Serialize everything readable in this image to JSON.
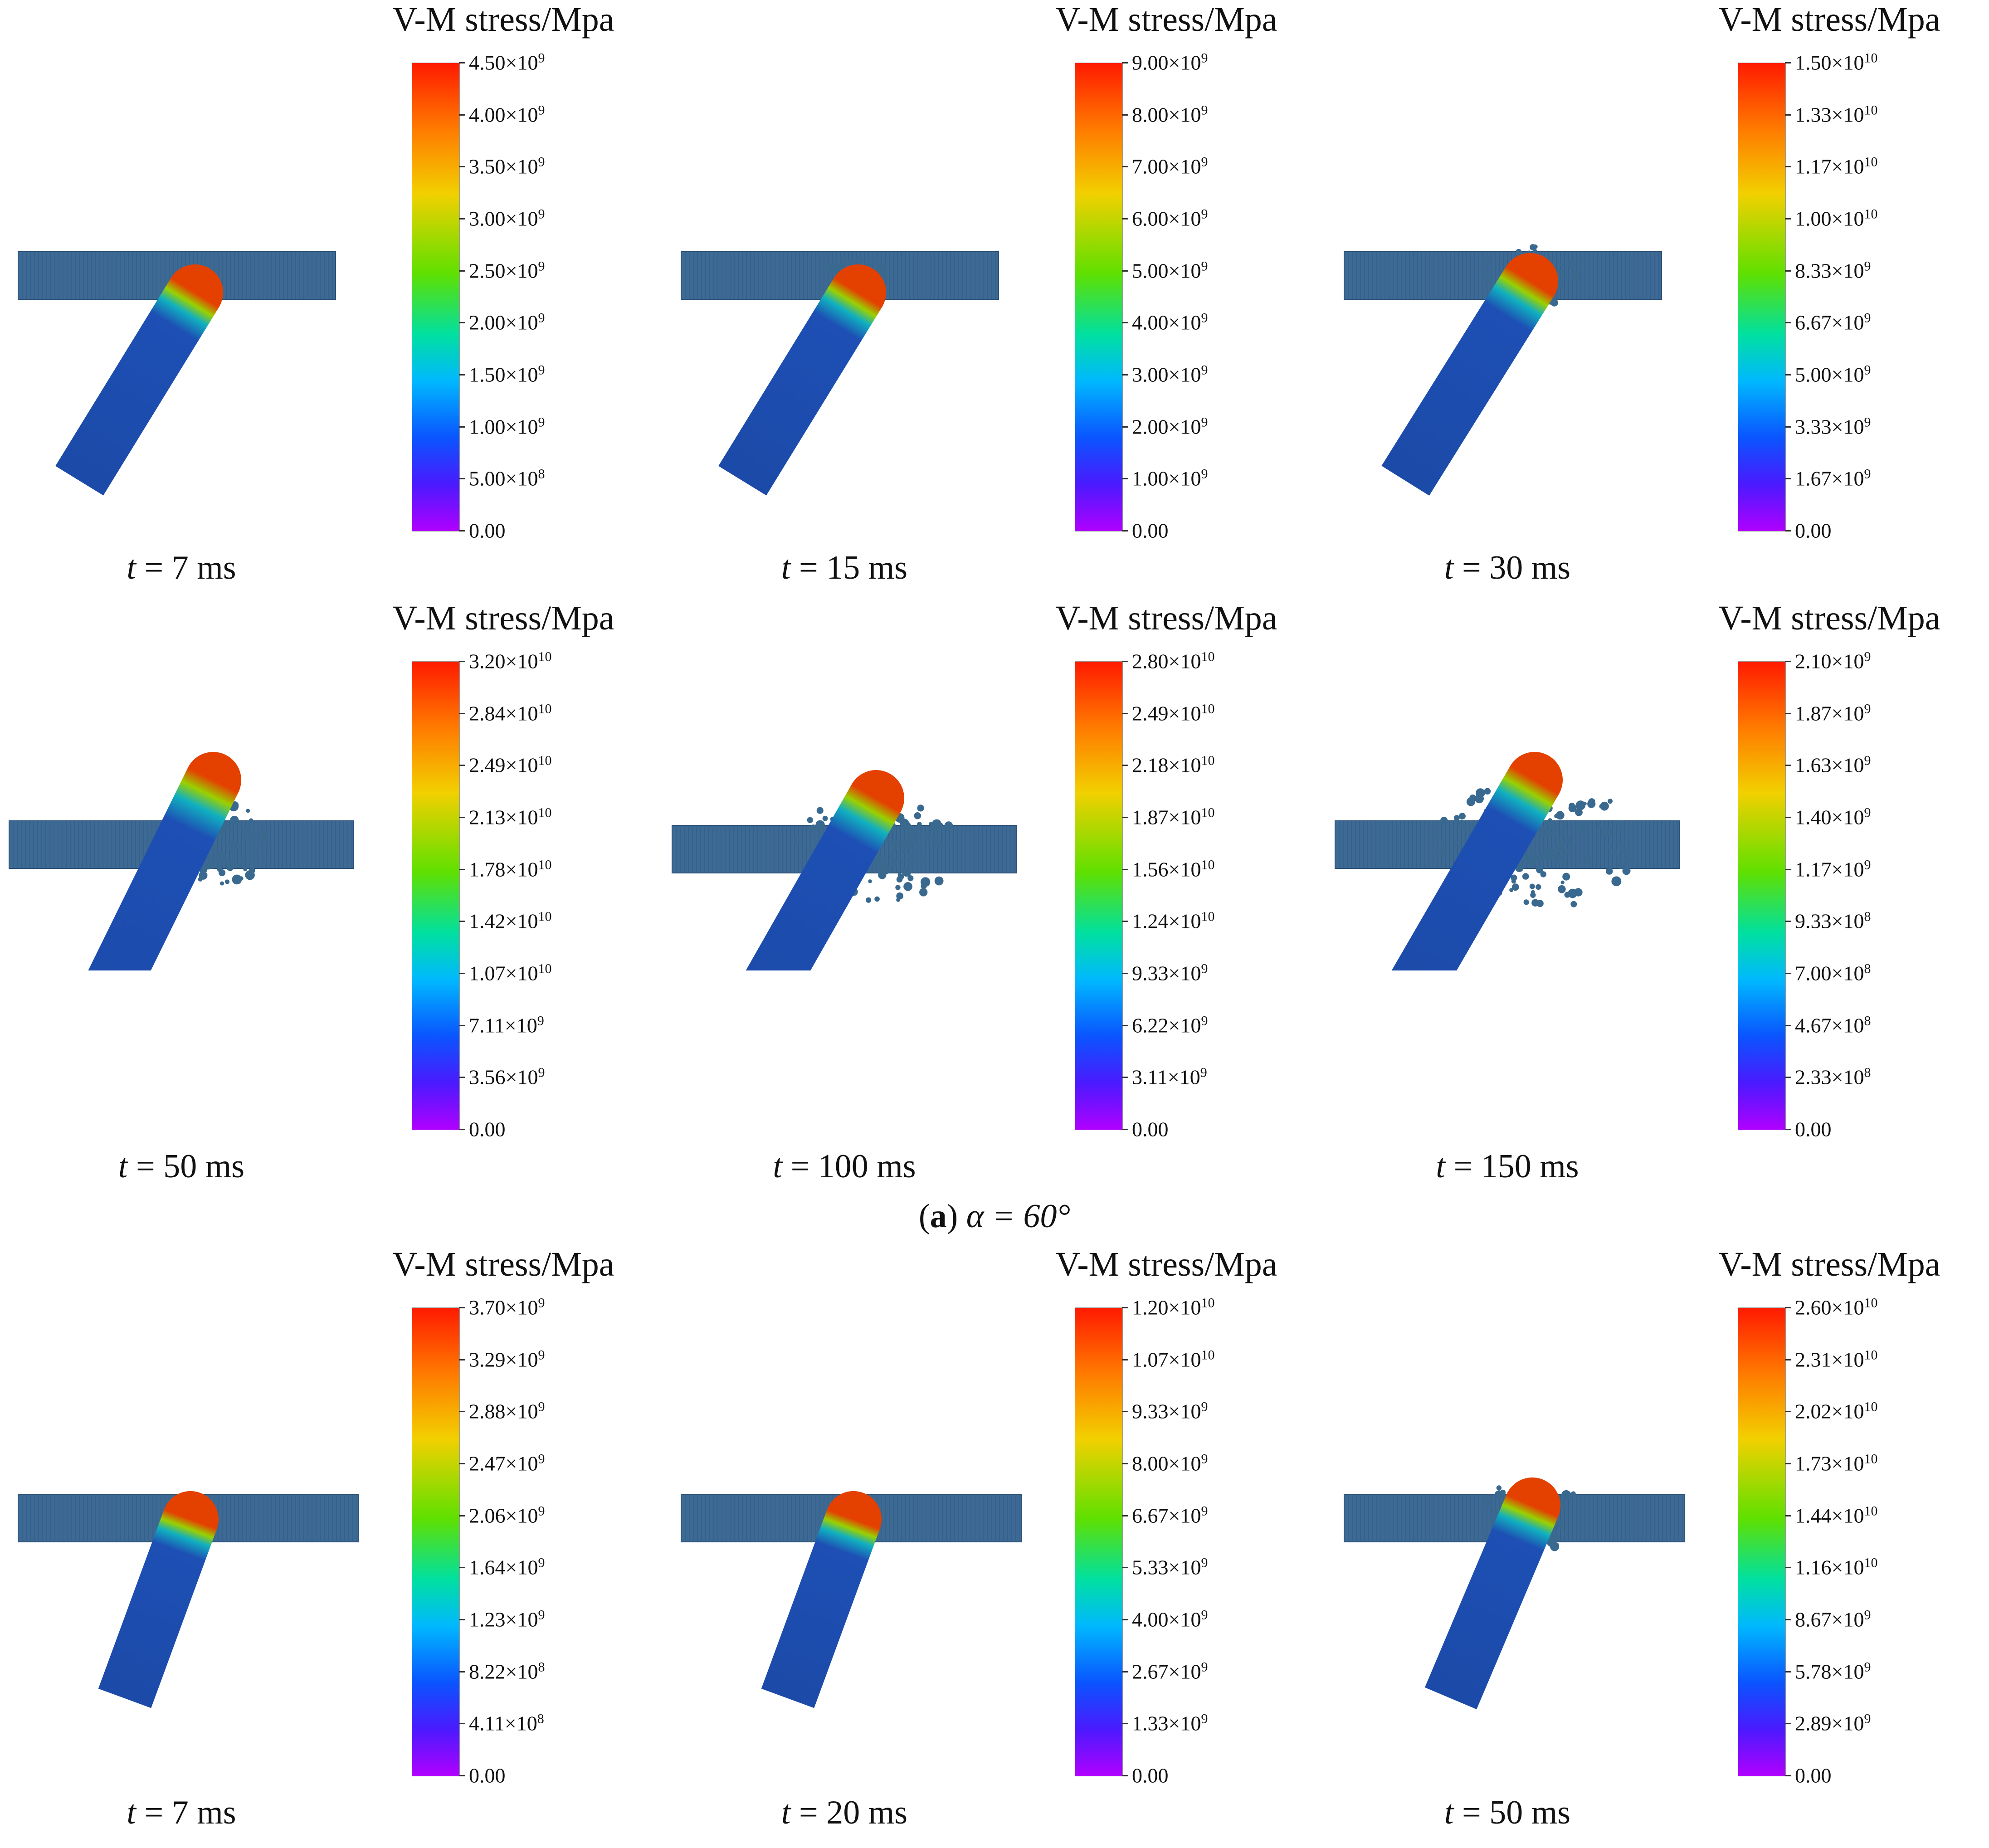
{
  "colorbar_title": "V-M stress/Mpa",
  "colormap": [
    "#ff1a00",
    "#ff7a00",
    "#f2d000",
    "#5fe000",
    "#00e0a0",
    "#00b8ff",
    "#0a55ff",
    "#4a1aff",
    "#b000ff"
  ],
  "subtitle_a": {
    "letter": "a",
    "text": " α = 60°"
  },
  "panels": [
    {
      "time": "t = 7 ms",
      "ticks": [
        [
          "4.50",
          "9"
        ],
        [
          "4.00",
          "9"
        ],
        [
          "3.50",
          "9"
        ],
        [
          "3.00",
          "9"
        ],
        [
          "2.50",
          "9"
        ],
        [
          "2.00",
          "9"
        ],
        [
          "1.50",
          "9"
        ],
        [
          "1.00",
          "9"
        ],
        [
          "5.00",
          "8"
        ],
        [
          "0.00",
          ""
        ]
      ]
    },
    {
      "time": "t = 15 ms",
      "ticks": [
        [
          "9.00",
          "9"
        ],
        [
          "8.00",
          "9"
        ],
        [
          "7.00",
          "9"
        ],
        [
          "6.00",
          "9"
        ],
        [
          "5.00",
          "9"
        ],
        [
          "4.00",
          "9"
        ],
        [
          "3.00",
          "9"
        ],
        [
          "2.00",
          "9"
        ],
        [
          "1.00",
          "9"
        ],
        [
          "0.00",
          ""
        ]
      ]
    },
    {
      "time": "t = 30 ms",
      "ticks": [
        [
          "1.50",
          "10"
        ],
        [
          "1.33",
          "10"
        ],
        [
          "1.17",
          "10"
        ],
        [
          "1.00",
          "10"
        ],
        [
          "8.33",
          "9"
        ],
        [
          "6.67",
          "9"
        ],
        [
          "5.00",
          "9"
        ],
        [
          "3.33",
          "9"
        ],
        [
          "1.67",
          "9"
        ],
        [
          "0.00",
          ""
        ]
      ]
    },
    {
      "time": "t = 50 ms",
      "ticks": [
        [
          "3.20",
          "10"
        ],
        [
          "2.84",
          "10"
        ],
        [
          "2.49",
          "10"
        ],
        [
          "2.13",
          "10"
        ],
        [
          "1.78",
          "10"
        ],
        [
          "1.42",
          "10"
        ],
        [
          "1.07",
          "10"
        ],
        [
          "7.11",
          "9"
        ],
        [
          "3.56",
          "9"
        ],
        [
          "0.00",
          ""
        ]
      ]
    },
    {
      "time": "t = 100 ms",
      "ticks": [
        [
          "2.80",
          "10"
        ],
        [
          "2.49",
          "10"
        ],
        [
          "2.18",
          "10"
        ],
        [
          "1.87",
          "10"
        ],
        [
          "1.56",
          "10"
        ],
        [
          "1.24",
          "10"
        ],
        [
          "9.33",
          "9"
        ],
        [
          "6.22",
          "9"
        ],
        [
          "3.11",
          "9"
        ],
        [
          "0.00",
          ""
        ]
      ]
    },
    {
      "time": "t = 150 ms",
      "ticks": [
        [
          "2.10",
          "9"
        ],
        [
          "1.87",
          "9"
        ],
        [
          "1.63",
          "9"
        ],
        [
          "1.40",
          "9"
        ],
        [
          "1.17",
          "9"
        ],
        [
          "9.33",
          "8"
        ],
        [
          "7.00",
          "8"
        ],
        [
          "4.67",
          "8"
        ],
        [
          "2.33",
          "8"
        ],
        [
          "0.00",
          ""
        ]
      ]
    },
    {
      "time": "t = 7 ms",
      "ticks": [
        [
          "3.70",
          "9"
        ],
        [
          "3.29",
          "9"
        ],
        [
          "2.88",
          "9"
        ],
        [
          "2.47",
          "9"
        ],
        [
          "2.06",
          "9"
        ],
        [
          "1.64",
          "9"
        ],
        [
          "1.23",
          "9"
        ],
        [
          "8.22",
          "8"
        ],
        [
          "4.11",
          "8"
        ],
        [
          "0.00",
          ""
        ]
      ]
    },
    {
      "time": "t = 20 ms",
      "ticks": [
        [
          "1.20",
          "10"
        ],
        [
          "1.07",
          "10"
        ],
        [
          "9.33",
          "9"
        ],
        [
          "8.00",
          "9"
        ],
        [
          "6.67",
          "9"
        ],
        [
          "5.33",
          "9"
        ],
        [
          "4.00",
          "9"
        ],
        [
          "2.67",
          "9"
        ],
        [
          "1.33",
          "9"
        ],
        [
          "0.00",
          ""
        ]
      ]
    },
    {
      "time": "t = 50 ms",
      "ticks": [
        [
          "2.60",
          "10"
        ],
        [
          "2.31",
          "10"
        ],
        [
          "2.02",
          "10"
        ],
        [
          "1.73",
          "10"
        ],
        [
          "1.44",
          "10"
        ],
        [
          "1.16",
          "10"
        ],
        [
          "8.67",
          "9"
        ],
        [
          "5.78",
          "9"
        ],
        [
          "2.89",
          "9"
        ],
        [
          "0.00",
          ""
        ]
      ]
    }
  ]
}
